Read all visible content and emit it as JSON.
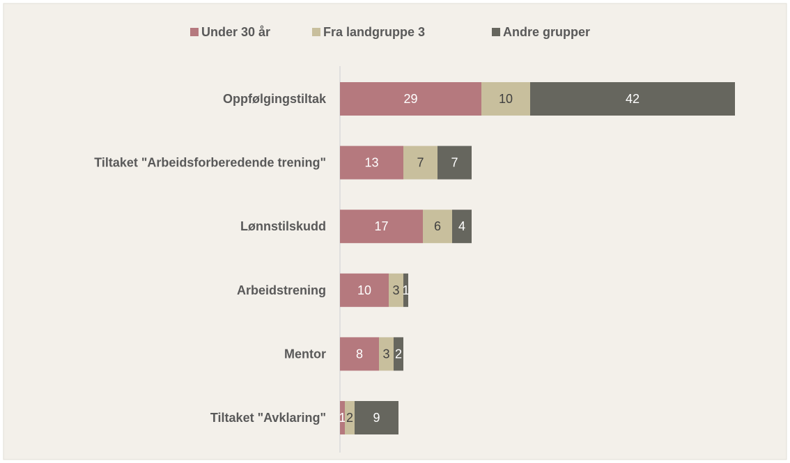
{
  "chart_data": {
    "type": "stacked-bar-horizontal",
    "categories": [
      "Oppfølgingstiltak",
      "Tiltaket \"Arbeidsforberedende trening\"",
      "Lønnstilskudd",
      "Arbeidstrening",
      "Mentor",
      "Tiltaket \"Avklaring\""
    ],
    "series": [
      {
        "name": "Under 30 år",
        "color": "#b5797e",
        "values": [
          29,
          13,
          17,
          10,
          8,
          1
        ]
      },
      {
        "name": "Fra landgruppe 3",
        "color": "#c8bf9d",
        "values": [
          10,
          7,
          6,
          3,
          3,
          2
        ]
      },
      {
        "name": "Andre grupper",
        "color": "#66665e",
        "values": [
          42,
          7,
          4,
          1,
          2,
          9
        ]
      }
    ],
    "legend": "top"
  }
}
